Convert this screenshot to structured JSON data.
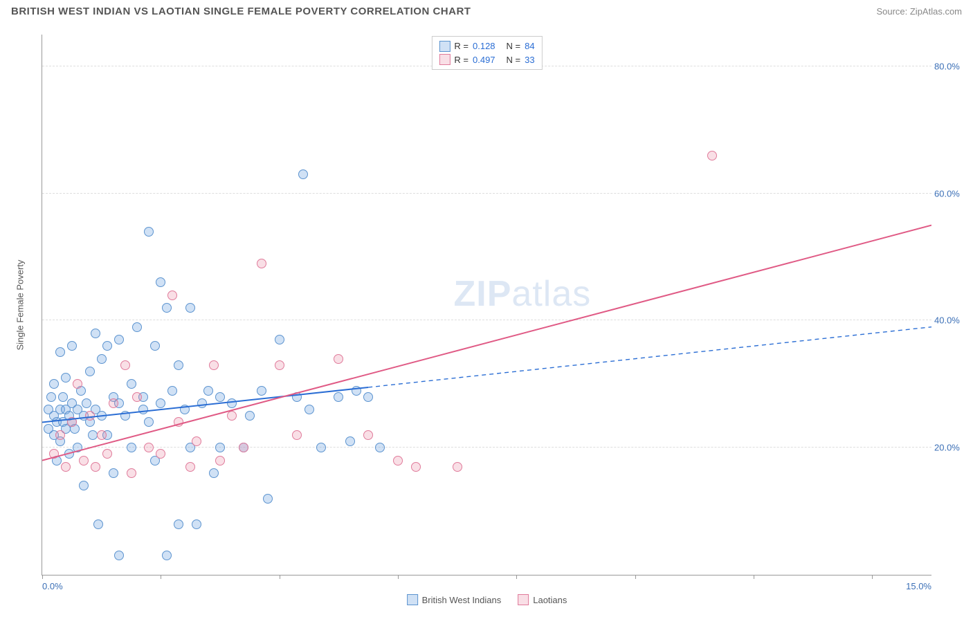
{
  "title": "BRITISH WEST INDIAN VS LAOTIAN SINGLE FEMALE POVERTY CORRELATION CHART",
  "source_label": "Source: ZipAtlas.com",
  "watermark": {
    "bold": "ZIP",
    "light": "atlas"
  },
  "chart": {
    "type": "scatter",
    "background_color": "#ffffff",
    "grid_color": "#dddddd",
    "axis_color": "#999999",
    "y_axis_title": "Single Female Poverty",
    "xlim": [
      0,
      15
    ],
    "ylim": [
      0,
      85
    ],
    "y_ticks": [
      {
        "value": 20,
        "label": "20.0%"
      },
      {
        "value": 40,
        "label": "40.0%"
      },
      {
        "value": 60,
        "label": "60.0%"
      },
      {
        "value": 80,
        "label": "80.0%"
      }
    ],
    "x_tick_values": [
      0,
      2,
      4,
      6,
      8,
      10,
      12,
      14
    ],
    "x_tick_labels": {
      "min": "0.0%",
      "max": "15.0%"
    },
    "label_color": "#3b6fb6",
    "label_fontsize": 13,
    "title_fontsize": 15,
    "marker_radius": 7,
    "marker_stroke_width": 1.2,
    "line_width": 2,
    "series": [
      {
        "name": "British West Indians",
        "key": "bwi",
        "fill_color": "rgba(120,170,225,0.35)",
        "stroke_color": "#5b93cf",
        "line_color": "#2a6dd4",
        "line_style_solid_until_x": 5.5,
        "dash_pattern": "6,5",
        "R": "0.128",
        "N": "84",
        "regression": {
          "x1": 0,
          "y1": 24,
          "x2": 15,
          "y2": 39
        },
        "points": [
          [
            0.1,
            26
          ],
          [
            0.1,
            23
          ],
          [
            0.15,
            28
          ],
          [
            0.2,
            22
          ],
          [
            0.2,
            25
          ],
          [
            0.2,
            30
          ],
          [
            0.25,
            18
          ],
          [
            0.25,
            24
          ],
          [
            0.3,
            26
          ],
          [
            0.3,
            35
          ],
          [
            0.3,
            21
          ],
          [
            0.35,
            24
          ],
          [
            0.35,
            28
          ],
          [
            0.4,
            23
          ],
          [
            0.4,
            26
          ],
          [
            0.4,
            31
          ],
          [
            0.45,
            25
          ],
          [
            0.45,
            19
          ],
          [
            0.5,
            24
          ],
          [
            0.5,
            27
          ],
          [
            0.5,
            36
          ],
          [
            0.55,
            23
          ],
          [
            0.6,
            26
          ],
          [
            0.6,
            20
          ],
          [
            0.65,
            29
          ],
          [
            0.7,
            25
          ],
          [
            0.7,
            14
          ],
          [
            0.75,
            27
          ],
          [
            0.8,
            24
          ],
          [
            0.8,
            32
          ],
          [
            0.85,
            22
          ],
          [
            0.9,
            38
          ],
          [
            0.9,
            26
          ],
          [
            0.95,
            8
          ],
          [
            1.0,
            25
          ],
          [
            1.0,
            34
          ],
          [
            1.1,
            36
          ],
          [
            1.1,
            22
          ],
          [
            1.2,
            28
          ],
          [
            1.2,
            16
          ],
          [
            1.3,
            27
          ],
          [
            1.3,
            37
          ],
          [
            1.3,
            3
          ],
          [
            1.4,
            25
          ],
          [
            1.5,
            30
          ],
          [
            1.5,
            20
          ],
          [
            1.6,
            39
          ],
          [
            1.7,
            26
          ],
          [
            1.7,
            28
          ],
          [
            1.8,
            54
          ],
          [
            1.8,
            24
          ],
          [
            1.9,
            36
          ],
          [
            1.9,
            18
          ],
          [
            2.0,
            46
          ],
          [
            2.0,
            27
          ],
          [
            2.1,
            42
          ],
          [
            2.1,
            3
          ],
          [
            2.2,
            29
          ],
          [
            2.3,
            8
          ],
          [
            2.3,
            33
          ],
          [
            2.4,
            26
          ],
          [
            2.5,
            42
          ],
          [
            2.5,
            20
          ],
          [
            2.6,
            8
          ],
          [
            2.7,
            27
          ],
          [
            2.8,
            29
          ],
          [
            2.9,
            16
          ],
          [
            3.0,
            20
          ],
          [
            3.0,
            28
          ],
          [
            3.2,
            27
          ],
          [
            3.4,
            20
          ],
          [
            3.5,
            25
          ],
          [
            3.7,
            29
          ],
          [
            3.8,
            12
          ],
          [
            4.0,
            37
          ],
          [
            4.3,
            28
          ],
          [
            4.4,
            63
          ],
          [
            4.5,
            26
          ],
          [
            4.7,
            20
          ],
          [
            5.0,
            28
          ],
          [
            5.2,
            21
          ],
          [
            5.3,
            29
          ],
          [
            5.5,
            28
          ],
          [
            5.7,
            20
          ]
        ]
      },
      {
        "name": "Laotians",
        "key": "lao",
        "fill_color": "rgba(235,140,165,0.28)",
        "stroke_color": "#e07a9a",
        "line_color": "#e05a85",
        "line_style_solid_until_x": 15,
        "dash_pattern": "none",
        "R": "0.497",
        "N": "33",
        "regression": {
          "x1": 0,
          "y1": 18,
          "x2": 15,
          "y2": 55
        },
        "points": [
          [
            0.2,
            19
          ],
          [
            0.3,
            22
          ],
          [
            0.4,
            17
          ],
          [
            0.5,
            24
          ],
          [
            0.6,
            30
          ],
          [
            0.7,
            18
          ],
          [
            0.8,
            25
          ],
          [
            0.9,
            17
          ],
          [
            1.0,
            22
          ],
          [
            1.1,
            19
          ],
          [
            1.2,
            27
          ],
          [
            1.4,
            33
          ],
          [
            1.5,
            16
          ],
          [
            1.6,
            28
          ],
          [
            1.8,
            20
          ],
          [
            2.0,
            19
          ],
          [
            2.2,
            44
          ],
          [
            2.3,
            24
          ],
          [
            2.5,
            17
          ],
          [
            2.6,
            21
          ],
          [
            2.9,
            33
          ],
          [
            3.0,
            18
          ],
          [
            3.2,
            25
          ],
          [
            3.4,
            20
          ],
          [
            3.7,
            49
          ],
          [
            4.0,
            33
          ],
          [
            4.3,
            22
          ],
          [
            5.0,
            34
          ],
          [
            5.5,
            22
          ],
          [
            6.0,
            18
          ],
          [
            6.3,
            17
          ],
          [
            7.0,
            17
          ],
          [
            11.3,
            66
          ]
        ]
      }
    ],
    "legend_bottom": [
      {
        "label": "British West Indians",
        "series": "bwi"
      },
      {
        "label": "Laotians",
        "series": "lao"
      }
    ]
  }
}
